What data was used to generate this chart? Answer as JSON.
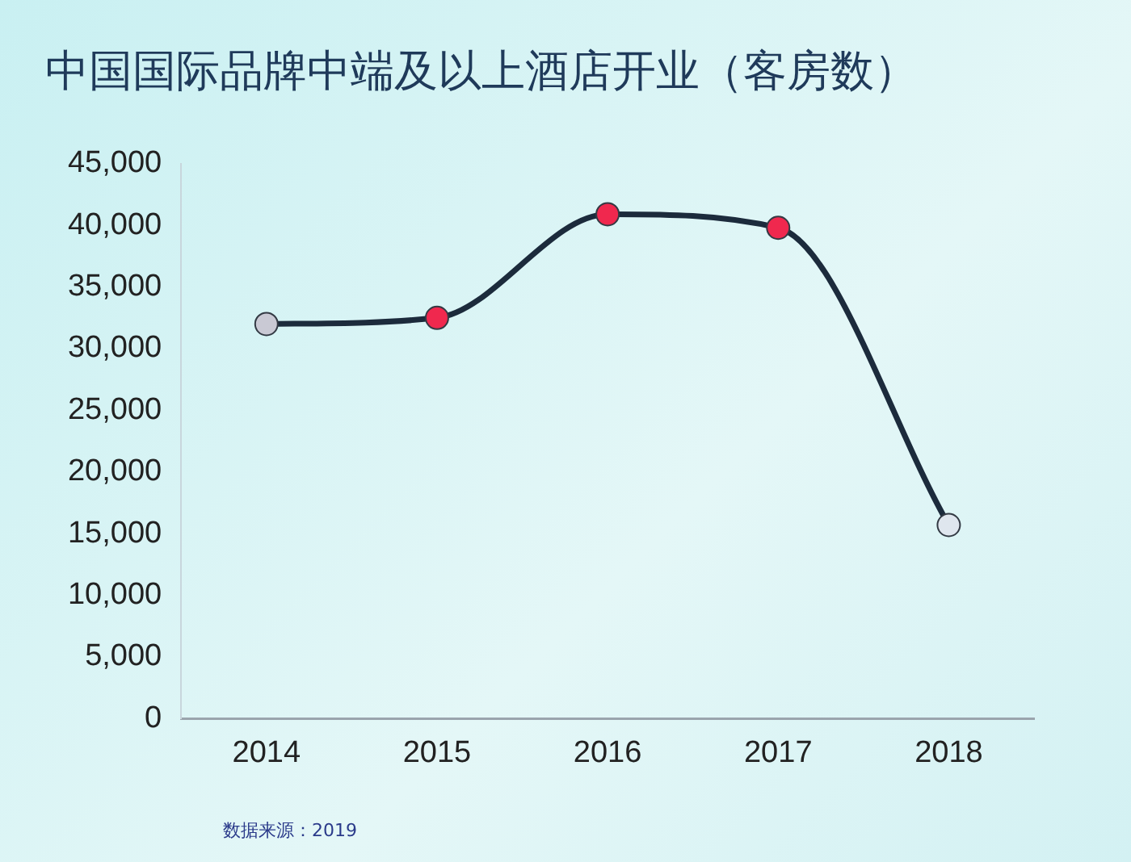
{
  "chart_data": {
    "type": "line",
    "title": "中国国际品牌中端及以上酒店开业（客房数）",
    "categories": [
      "2014",
      "2015",
      "2016",
      "2017",
      "2018"
    ],
    "series": [
      {
        "color": "#1c2b3c",
        "colors": [
          "#c9c9d4",
          "#f0284e",
          "#f0284e",
          "#f0284e",
          "#dfe6ee"
        ],
        "values": [
          32000,
          32500,
          40900,
          39800,
          15700
        ]
      }
    ],
    "ylim": [
      0,
      45000
    ],
    "yticks": [
      {
        "value": 0,
        "label": "0"
      },
      {
        "value": 5000,
        "label": "5,000"
      },
      {
        "value": 10000,
        "label": "10,000"
      },
      {
        "value": 15000,
        "label": "15,000"
      },
      {
        "value": 20000,
        "label": "20,000"
      },
      {
        "value": 25000,
        "label": "25,000"
      },
      {
        "value": 30000,
        "label": "30,000"
      },
      {
        "value": 35000,
        "label": "35,000"
      },
      {
        "value": 40000,
        "label": "40,000"
      },
      {
        "value": 45000,
        "label": "45,000"
      }
    ],
    "grid": false,
    "legend": false,
    "marker": "circle",
    "line_style": "solid",
    "annotations": [
      "数据来源：2019"
    ]
  }
}
